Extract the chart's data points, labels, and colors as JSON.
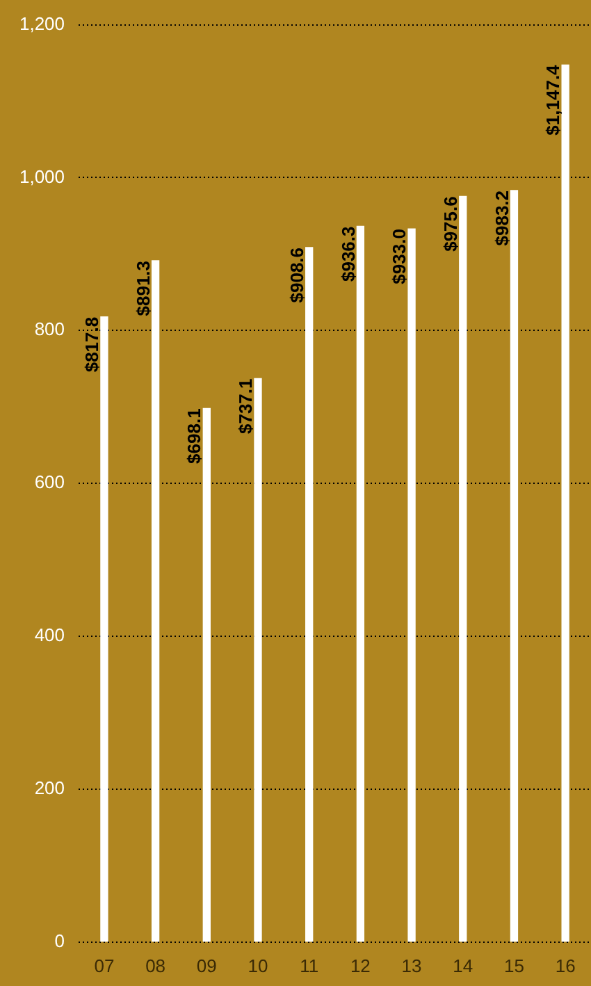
{
  "chart_data": {
    "type": "bar",
    "categories": [
      "07",
      "08",
      "09",
      "10",
      "11",
      "12",
      "13",
      "14",
      "15",
      "16"
    ],
    "values": [
      817.8,
      891.3,
      698.1,
      737.1,
      908.6,
      936.3,
      933.0,
      975.6,
      983.2,
      1147.4
    ],
    "value_labels": [
      "$817.8",
      "$891.3",
      "$698.1",
      "$737.1",
      "$908.6",
      "$936.3",
      "$933.0",
      "$975.6",
      "$983.2",
      "$1,147.4"
    ],
    "color": "#ffffff",
    "ylim": [
      0,
      1200
    ],
    "yticks": [
      0,
      {
        "value": 200,
        "label": "200"
      },
      {
        "value": 400,
        "label": "400"
      },
      {
        "value": 600,
        "label": "600"
      },
      {
        "value": 800,
        "label": "800"
      },
      {
        "value": 1000,
        "label": "1,000"
      },
      {
        "value": 1200,
        "label": "1,200"
      }
    ],
    "grid": "y",
    "legend": false
  }
}
